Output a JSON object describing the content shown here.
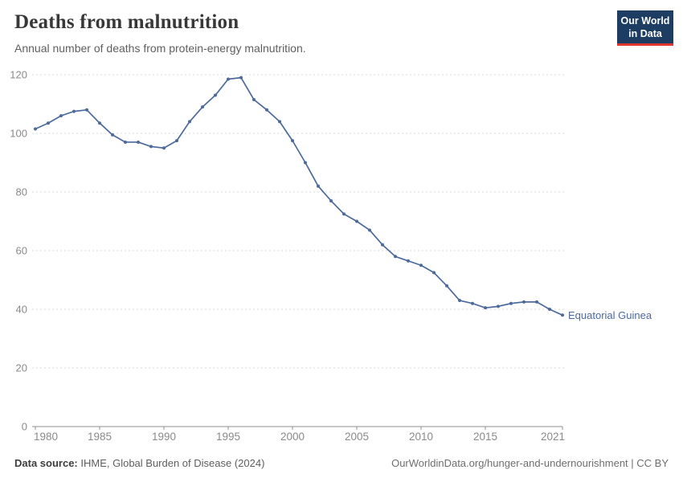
{
  "header": {
    "title": "Deaths from malnutrition",
    "subtitle": "Annual number of deaths from protein-energy malnutrition.",
    "logo": {
      "line1": "Our World",
      "line2": "in Data",
      "bg_color": "#1d3d63",
      "accent_color": "#e0362f"
    }
  },
  "chart_data": {
    "type": "line",
    "title": "Deaths from malnutrition",
    "subtitle": "Annual number of deaths from protein-energy malnutrition.",
    "x": [
      1980,
      1981,
      1982,
      1983,
      1984,
      1985,
      1986,
      1987,
      1988,
      1989,
      1990,
      1991,
      1992,
      1993,
      1994,
      1995,
      1996,
      1997,
      1998,
      1999,
      2000,
      2001,
      2002,
      2003,
      2004,
      2005,
      2006,
      2007,
      2008,
      2009,
      2010,
      2011,
      2012,
      2013,
      2014,
      2015,
      2016,
      2017,
      2018,
      2019,
      2020,
      2021
    ],
    "series": [
      {
        "name": "Equatorial Guinea",
        "color": "#4C6A9C",
        "values": [
          101.5,
          103.5,
          106,
          107.5,
          108,
          103.5,
          99.5,
          97,
          97,
          95.5,
          95,
          97.5,
          104,
          109,
          113,
          118.5,
          119,
          111.5,
          108,
          104,
          97.5,
          90,
          82,
          77,
          72.5,
          70,
          67,
          62,
          58,
          56.5,
          55,
          52.5,
          48,
          43,
          42,
          40.5,
          41,
          42,
          42.5,
          42.5,
          40,
          38
        ]
      }
    ],
    "x_ticks": [
      1980,
      1985,
      1990,
      1995,
      2000,
      2005,
      2010,
      2015,
      2021
    ],
    "y_ticks": [
      0,
      20,
      40,
      60,
      80,
      100,
      120
    ],
    "xlim": [
      1980,
      2021
    ],
    "ylim": [
      0,
      120
    ],
    "grid": "horizontal-dashed",
    "legend_position": "end-of-line-label",
    "colors": {
      "grid": "#d9d9d9",
      "axis": "#8f8f8f",
      "tick_label": "#8a8a8a"
    }
  },
  "footer": {
    "datasource_label": "Data source:",
    "datasource_value": " IHME, Global Burden of Disease (2024)",
    "attribution": "OurWorldinData.org/hunger-and-undernourishment | CC BY"
  }
}
